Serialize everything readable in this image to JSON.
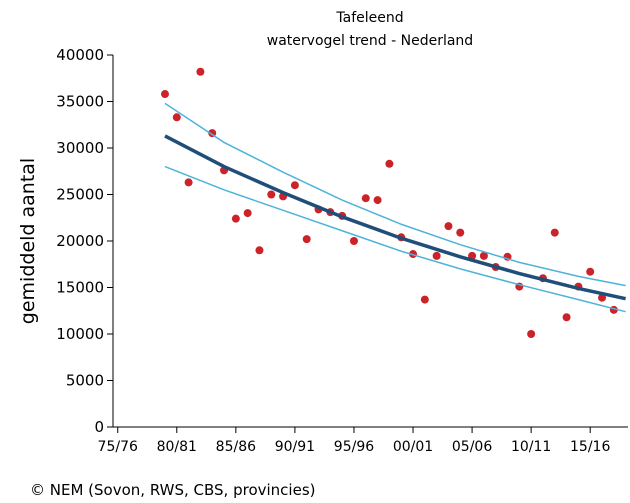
{
  "chart_data": {
    "type": "scatter",
    "title": "Tafeleend",
    "subtitle": "watervogel trend - Nederland",
    "ylabel": "gemiddeld aantal",
    "source": "© NEM (Sovon, RWS, CBS, provincies)",
    "xlim": [
      1974.6,
      2018.2
    ],
    "ylim": [
      0,
      40000
    ],
    "xticks": [
      {
        "value": 1975,
        "label": "75/76"
      },
      {
        "value": 1980,
        "label": "80/81"
      },
      {
        "value": 1985,
        "label": "85/86"
      },
      {
        "value": 1990,
        "label": "90/91"
      },
      {
        "value": 1995,
        "label": "95/96"
      },
      {
        "value": 2000,
        "label": "00/01"
      },
      {
        "value": 2005,
        "label": "05/06"
      },
      {
        "value": 2010,
        "label": "10/11"
      },
      {
        "value": 2015,
        "label": "15/16"
      }
    ],
    "yticks": [
      0,
      5000,
      10000,
      15000,
      20000,
      25000,
      30000,
      35000,
      40000
    ],
    "series": [
      {
        "mode": "markers",
        "color": "#cc2229",
        "x": [
          1979,
          1980,
          1981,
          1982,
          1983,
          1984,
          1985,
          1986,
          1987,
          1988,
          1989,
          1990,
          1991,
          1992,
          1993,
          1994,
          1995,
          1996,
          1997,
          1998,
          1999,
          2000,
          2001,
          2002,
          2003,
          2004,
          2005,
          2006,
          2007,
          2008,
          2009,
          2010,
          2011,
          2012,
          2013,
          2014,
          2015,
          2016,
          2017
        ],
        "values": [
          35800,
          33300,
          26300,
          38200,
          31600,
          27600,
          22400,
          23000,
          19000,
          25000,
          24800,
          26000,
          20200,
          23400,
          23100,
          22700,
          20000,
          24600,
          24400,
          28300,
          20400,
          18600,
          13700,
          18400,
          21600,
          20900,
          18400,
          18400,
          17200,
          18300,
          15100,
          10000,
          16000,
          20900,
          11800,
          15100,
          16700,
          13900,
          12600
        ]
      },
      {
        "mode": "line",
        "color": "#4fb3d9",
        "x": [
          1979,
          1984,
          1989,
          1994,
          1999,
          2004,
          2009,
          2014,
          2018
        ],
        "values": [
          34800,
          30600,
          27400,
          24400,
          21800,
          19600,
          17700,
          16200,
          15200
        ]
      },
      {
        "mode": "line",
        "color": "#4fb3d9",
        "x": [
          1979,
          1984,
          1989,
          1994,
          1999,
          2004,
          2009,
          2014,
          2018
        ],
        "values": [
          28000,
          25500,
          23300,
          21100,
          18900,
          17000,
          15300,
          13700,
          12400
        ]
      },
      {
        "mode": "line",
        "color": "#1f4e79",
        "x": [
          1979,
          1984,
          1989,
          1994,
          1999,
          2004,
          2009,
          2014,
          2018
        ],
        "values": [
          31300,
          28000,
          25200,
          22600,
          20300,
          18300,
          16500,
          14900,
          13800
        ]
      }
    ]
  }
}
